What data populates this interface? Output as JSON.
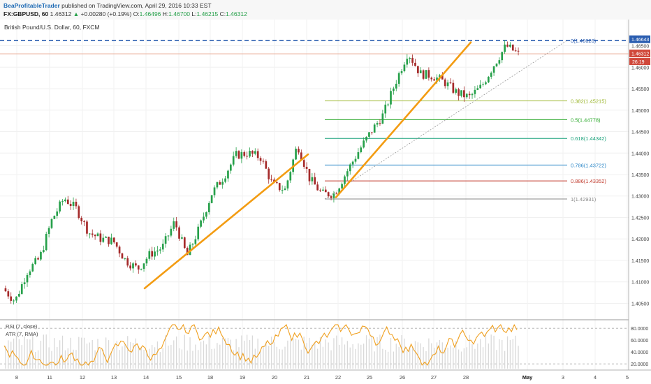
{
  "header": {
    "author": "BeaProfitableTrader",
    "published": "published on TradingView.com, April 29, 2016 10:33 EST",
    "symbol": "FX:GBPUSD, 60",
    "last": "1.46312",
    "change_arrow": "▲",
    "change": "+0.00280 (+0.19%)",
    "o_label": "O:",
    "o_value": "1.46496",
    "h_label": "H:",
    "h_value": "1.46700",
    "l_label": "L:",
    "l_value": "1.46215",
    "c_label": "C:",
    "c_value": "1.46312"
  },
  "colors": {
    "up": "#26a04a",
    "down": "#a52a2a",
    "trend": "#f39c12",
    "fib_dash": "#2a5db0"
  },
  "chart_data": {
    "type": "candlestick",
    "title": "British Pound/U.S. Dollar, 60, FXCM",
    "ylim": [
      1.4015,
      1.4685
    ],
    "y_ticks": [
      "1.46643",
      "1.46500",
      "1.46000",
      "1.45500",
      "1.45000",
      "1.44500",
      "1.44000",
      "1.43500",
      "1.43000",
      "1.42500",
      "1.42000",
      "1.41500",
      "1.41000",
      "1.40500"
    ],
    "x_ticks": [
      "8",
      "11",
      "12",
      "13",
      "14",
      "15",
      "18",
      "19",
      "20",
      "21",
      "22",
      "25",
      "26",
      "27",
      "28",
      "May",
      "3",
      "4",
      "5"
    ],
    "last_price": "1.46312",
    "countdown": "26:19",
    "close_path": [
      [
        "8",
        1.4085
      ],
      [
        "8",
        1.4055
      ],
      [
        "11",
        1.4125
      ],
      [
        "11",
        1.4155
      ],
      [
        "12",
        1.4245
      ],
      [
        "12",
        1.4295
      ],
      [
        "12",
        1.427
      ],
      [
        "13",
        1.4215
      ],
      [
        "13",
        1.42
      ],
      [
        "14",
        1.4195
      ],
      [
        "14",
        1.415
      ],
      [
        "14",
        1.413
      ],
      [
        "15",
        1.4165
      ],
      [
        "15",
        1.418
      ],
      [
        "18",
        1.424
      ],
      [
        "18",
        1.416
      ],
      [
        "18",
        1.4225
      ],
      [
        "19",
        1.4305
      ],
      [
        "19",
        1.4345
      ],
      [
        "19",
        1.4395
      ],
      [
        "20",
        1.44
      ],
      [
        "20",
        1.439
      ],
      [
        "20",
        1.4325
      ],
      [
        "21",
        1.4315
      ],
      [
        "21",
        1.442
      ],
      [
        "21",
        1.434
      ],
      [
        "22",
        1.4305
      ],
      [
        "22",
        1.4305
      ],
      [
        "22",
        1.4355
      ],
      [
        "25",
        1.4405
      ],
      [
        "25",
        1.445
      ],
      [
        "25",
        1.449
      ],
      [
        "26",
        1.4565
      ],
      [
        "26",
        1.4635
      ],
      [
        "26",
        1.4585
      ],
      [
        "27",
        1.458
      ],
      [
        "27",
        1.4565
      ],
      [
        "27",
        1.454
      ],
      [
        "28",
        1.453
      ],
      [
        "28",
        1.4555
      ],
      [
        "28",
        1.4605
      ],
      [
        "28",
        1.465
      ],
      [
        "May",
        1.4631
      ]
    ],
    "series_visible_range": [
      "8",
      "May"
    ],
    "fib_levels": [
      {
        "label": "0(1.46626)",
        "value": 1.46626,
        "color": "#2a5db0"
      },
      {
        "label": "0.382(1.45215)",
        "value": 1.45215,
        "color": "#9ab52a"
      },
      {
        "label": "0.5(1.44778)",
        "value": 1.44778,
        "color": "#2ba82b"
      },
      {
        "label": "0.618(1.44342)",
        "value": 1.44342,
        "color": "#19a17a"
      },
      {
        "label": "0.786(1.43722)",
        "value": 1.43722,
        "color": "#2a86c7"
      },
      {
        "label": "0.886(1.43352)",
        "value": 1.43352,
        "color": "#c0392b"
      },
      {
        "label": "1(1.42931)",
        "value": 1.42931,
        "color": "#888888"
      }
    ],
    "trend_lines": [
      {
        "from": [
          "14",
          1.4085
        ],
        "to": [
          "21",
          1.4397
        ]
      },
      {
        "from": [
          "22",
          1.4297
        ],
        "to": [
          "28",
          1.4658
        ]
      }
    ],
    "indicator": {
      "labels": [
        "RSI (7, close)",
        "ATR (7, RMA)"
      ],
      "y_ticks": [
        "80.0000",
        "60.0000",
        "40.0000",
        "20.0000"
      ],
      "ylim": [
        12,
        92
      ]
    }
  }
}
